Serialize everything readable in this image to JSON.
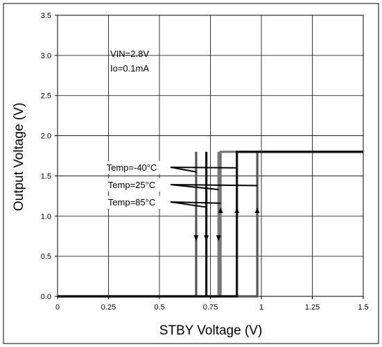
{
  "chart_data": {
    "type": "line",
    "xlabel": "STBY Voltage (V)",
    "ylabel": "Output Voltage  (V)",
    "xlim": [
      0,
      1.5
    ],
    "ylim": [
      0,
      3.5
    ],
    "grid": true,
    "x_ticks": [
      "0",
      "0.25",
      "0.5",
      "0.75",
      "1",
      "1.25",
      "1.5"
    ],
    "y_ticks": [
      "0.0",
      "0.5",
      "1.0",
      "1.5",
      "2.0",
      "2.5",
      "3.0",
      "3.5"
    ],
    "annotations": {
      "conditions": [
        "VIN=2.8V",
        "Io=0.1mA"
      ],
      "temps": [
        "Temp=-40°C",
        "Temp=25°C",
        "Temp=85°C"
      ]
    },
    "series": [
      {
        "color": "#555555",
        "x": [
          0,
          0.68,
          0.68,
          1.5
        ],
        "y": [
          0,
          0,
          1.8,
          1.8
        ],
        "hysteresis": {
          "off": 0.68,
          "on": 0.98
        }
      },
      {
        "color": "#111111",
        "x": [
          0,
          0.73,
          0.73,
          1.5
        ],
        "y": [
          0,
          0,
          1.8,
          1.8
        ],
        "hysteresis": {
          "off": 0.73,
          "on": 0.88
        }
      },
      {
        "color": "#777777",
        "x": [
          0,
          0.79,
          0.79,
          1.5
        ],
        "y": [
          0,
          0,
          1.8,
          1.8
        ],
        "hysteresis": {
          "off": 0.79,
          "on": 0.8
        }
      }
    ]
  }
}
